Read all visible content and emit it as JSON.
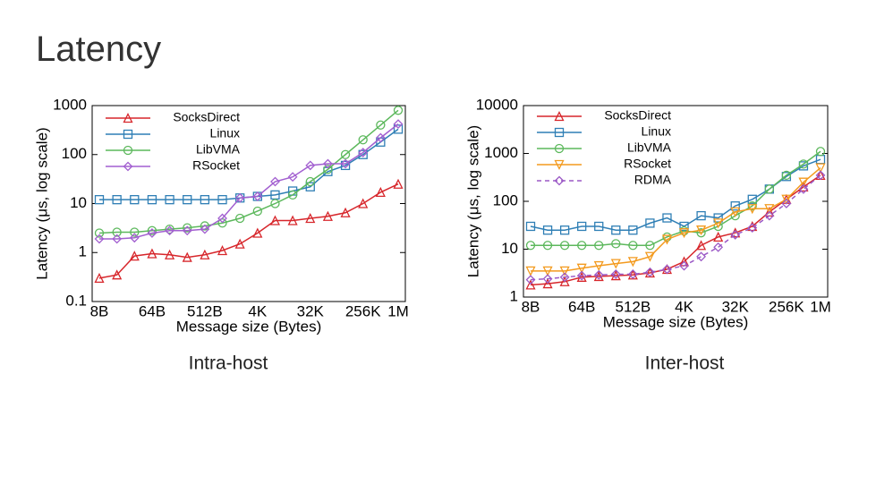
{
  "title": "Latency",
  "chart_data": [
    {
      "type": "line",
      "caption": "Intra-host",
      "x_label": "Message size (Bytes)",
      "y_label": "Latency (μs, log scale)",
      "yscale": "log",
      "ylim": [
        0.1,
        1000
      ],
      "yticks": [
        0.1,
        1,
        10,
        100,
        1000
      ],
      "categories": [
        "8B",
        null,
        null,
        "64B",
        null,
        null,
        "512B",
        null,
        null,
        "4K",
        null,
        null,
        "32K",
        null,
        null,
        "256K",
        null,
        "1M"
      ],
      "series": [
        {
          "name": "SocksDirect",
          "color": "#d7262b",
          "marker": "triangle",
          "values": [
            0.3,
            0.35,
            0.85,
            0.95,
            0.9,
            0.8,
            0.9,
            1.1,
            1.5,
            2.5,
            4.5,
            4.5,
            5,
            5.5,
            6.5,
            10,
            17,
            25
          ]
        },
        {
          "name": "Linux",
          "color": "#2f7fb5",
          "marker": "square",
          "values": [
            12,
            12,
            12,
            12,
            12,
            12,
            12,
            12,
            13,
            14,
            15,
            18,
            22,
            45,
            60,
            100,
            180,
            330
          ]
        },
        {
          "name": "LibVMA",
          "color": "#5cb85c",
          "marker": "circle",
          "values": [
            2.5,
            2.6,
            2.6,
            2.8,
            3,
            3.2,
            3.5,
            4,
            5,
            7,
            10,
            15,
            28,
            50,
            100,
            200,
            400,
            800
          ]
        },
        {
          "name": "RSocket",
          "color": "#a25fd0",
          "marker": "diamond",
          "values": [
            1.9,
            1.9,
            2,
            2.5,
            2.8,
            2.8,
            3,
            5,
            13,
            14,
            28,
            35,
            60,
            65,
            65,
            110,
            220,
            420
          ]
        }
      ]
    },
    {
      "type": "line",
      "caption": "Inter-host",
      "x_label": "Message size (Bytes)",
      "y_label": "Latency (μs, log scale)",
      "yscale": "log",
      "ylim": [
        1,
        10000
      ],
      "yticks": [
        1,
        10,
        100,
        1000,
        10000
      ],
      "categories": [
        "8B",
        null,
        null,
        "64B",
        null,
        null,
        "512B",
        null,
        null,
        "4K",
        null,
        null,
        "32K",
        null,
        null,
        "256K",
        null,
        "1M"
      ],
      "series": [
        {
          "name": "SocksDirect",
          "color": "#d7262b",
          "marker": "triangle",
          "values": [
            1.8,
            1.9,
            2.1,
            2.6,
            2.7,
            2.8,
            2.9,
            3.2,
            3.8,
            5.5,
            12,
            18,
            22,
            30,
            60,
            110,
            200,
            350
          ]
        },
        {
          "name": "Linux",
          "color": "#2f7fb5",
          "marker": "square",
          "values": [
            30,
            25,
            25,
            30,
            30,
            25,
            25,
            35,
            45,
            30,
            50,
            45,
            80,
            110,
            180,
            330,
            550,
            750
          ]
        },
        {
          "name": "LibVMA",
          "color": "#5cb85c",
          "marker": "circle",
          "values": [
            12,
            12,
            12,
            12,
            12,
            13,
            12,
            12,
            18,
            24,
            22,
            30,
            50,
            80,
            180,
            350,
            600,
            1100
          ]
        },
        {
          "name": "RSocket",
          "color": "#f39a1e",
          "marker": "down-triangle",
          "values": [
            3.5,
            3.5,
            3.5,
            4,
            4.5,
            5,
            5.5,
            7,
            16,
            22,
            25,
            35,
            60,
            70,
            70,
            110,
            250,
            500
          ]
        },
        {
          "name": "RDMA",
          "color": "#9b59c6",
          "marker": "diamond",
          "dash": true,
          "values": [
            2.3,
            2.4,
            2.6,
            2.8,
            2.9,
            3,
            3,
            3.3,
            3.8,
            4.5,
            7,
            11,
            20,
            28,
            50,
            90,
            180,
            350
          ]
        }
      ]
    }
  ]
}
